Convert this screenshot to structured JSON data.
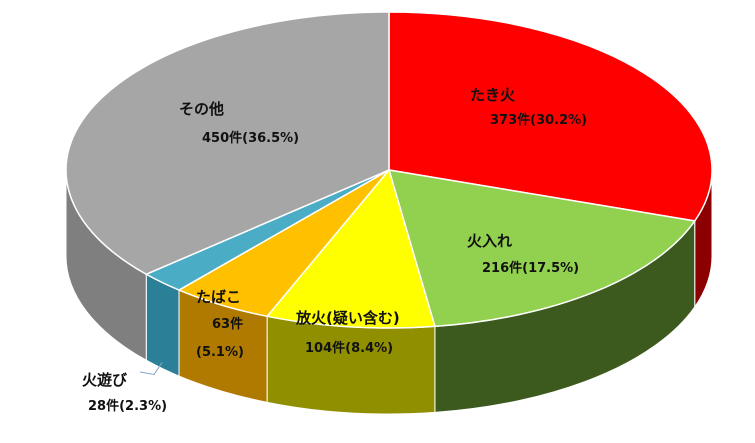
{
  "chart_data": {
    "type": "pie",
    "three_d": true,
    "title": "",
    "slices": [
      {
        "label": "たき火",
        "value": 373,
        "value_text": "373件",
        "percent_text": "(30.2%)",
        "color": "#ff0000",
        "side_color": "#8b0000"
      },
      {
        "label": "火入れ",
        "value": 216,
        "value_text": "216件",
        "percent_text": "(17.5%)",
        "color": "#92d050",
        "side_color": "#3d5a1e"
      },
      {
        "label": "放火(疑い含む)",
        "value": 104,
        "value_text": "104件",
        "percent_text": "(8.4%)",
        "color": "#ffff00",
        "side_color": "#8f8f00"
      },
      {
        "label": "たばこ",
        "value": 63,
        "value_text": "63件",
        "percent_text": "(5.1%)",
        "color": "#ffc000",
        "side_color": "#b07a00"
      },
      {
        "label": "火遊び",
        "value": 28,
        "value_text": "28件",
        "percent_text": "(2.3%)",
        "color": "#4bacc6",
        "side_color": "#2b7f96"
      },
      {
        "label": "その他",
        "value": 450,
        "value_text": "450件",
        "percent_text": "(36.5%)",
        "color": "#a6a6a6",
        "side_color": "#7f7f7f"
      }
    ],
    "legend": "none",
    "data_labels": "on chart"
  }
}
